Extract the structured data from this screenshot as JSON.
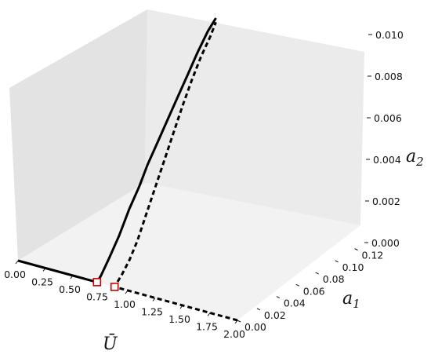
{
  "chart_data": {
    "type": "line3d",
    "title": "",
    "axes": {
      "x": {
        "label": "Ū",
        "range": [
          0,
          2
        ],
        "ticks": [
          "0.00",
          "0.25",
          "0.50",
          "0.75",
          "1.00",
          "1.25",
          "1.50",
          "1.75",
          "2.00"
        ]
      },
      "y": {
        "label_base": "a",
        "label_sub": "1",
        "range": [
          0,
          0.13
        ],
        "ticks": [
          "0.00",
          "0.02",
          "0.04",
          "0.06",
          "0.08",
          "0.10",
          "0.12"
        ]
      },
      "z": {
        "label_base": "a",
        "label_sub": "2",
        "range": [
          0,
          0.01
        ],
        "ticks": [
          "0.000",
          "0.002",
          "0.004",
          "0.006",
          "0.008",
          "0.010"
        ]
      }
    },
    "grid": false,
    "colors": {
      "pane_back": "#ebebeb",
      "pane_side": "#e3e3e3",
      "pane_floor": "#f2f2f2",
      "line": "#000000",
      "marker": "#cc0000"
    },
    "series": [
      {
        "style": "solid",
        "points": [
          [
            0.0,
            0.0,
            0.0
          ],
          [
            0.25,
            0.0,
            0.0
          ],
          [
            0.5,
            0.0,
            0.0
          ],
          [
            0.72,
            0.0,
            0.0
          ],
          [
            0.72,
            0.004,
            0.0002
          ],
          [
            0.72,
            0.012,
            0.0008
          ],
          [
            0.72,
            0.022,
            0.0016
          ],
          [
            0.72,
            0.032,
            0.0026
          ],
          [
            0.72,
            0.042,
            0.0034
          ],
          [
            0.72,
            0.05,
            0.0042
          ],
          [
            0.72,
            0.06,
            0.005
          ],
          [
            0.72,
            0.07,
            0.0058
          ],
          [
            0.72,
            0.08,
            0.0066
          ],
          [
            0.72,
            0.09,
            0.0074
          ],
          [
            0.72,
            0.1,
            0.0082
          ],
          [
            0.72,
            0.11,
            0.0089
          ],
          [
            0.72,
            0.118,
            0.0093
          ]
        ]
      },
      {
        "style": "dashed",
        "points": [
          [
            2.0,
            0.0,
            0.0
          ],
          [
            1.6,
            0.0,
            0.0
          ],
          [
            1.2,
            0.0,
            0.0
          ],
          [
            0.88,
            0.0,
            0.0
          ],
          [
            0.86,
            0.004,
            0.0
          ],
          [
            0.84,
            0.012,
            0.0002
          ],
          [
            0.82,
            0.022,
            0.0006
          ],
          [
            0.8,
            0.032,
            0.0012
          ],
          [
            0.79,
            0.042,
            0.0022
          ],
          [
            0.78,
            0.052,
            0.0032
          ],
          [
            0.77,
            0.062,
            0.0042
          ],
          [
            0.76,
            0.072,
            0.0052
          ],
          [
            0.75,
            0.082,
            0.0062
          ],
          [
            0.74,
            0.092,
            0.0071
          ],
          [
            0.73,
            0.102,
            0.0079
          ],
          [
            0.725,
            0.112,
            0.0086
          ],
          [
            0.72,
            0.118,
            0.0091
          ]
        ]
      }
    ],
    "markers": [
      {
        "shape": "square",
        "point": [
          0.72,
          0.0,
          0.0
        ]
      },
      {
        "shape": "square",
        "point": [
          0.88,
          0.0,
          0.0
        ]
      }
    ]
  }
}
